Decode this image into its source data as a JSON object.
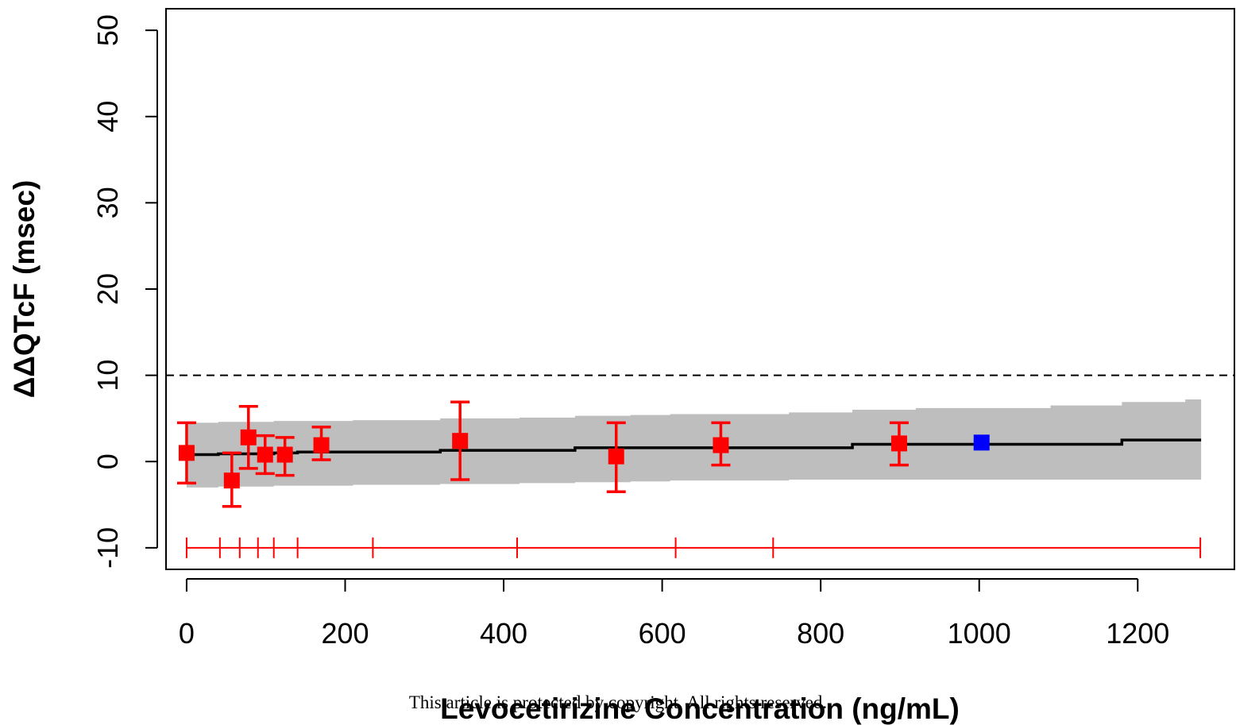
{
  "chart_data": {
    "type": "scatter",
    "title": "",
    "xlabel": "Levocetirizine Concentration (ng/mL)",
    "ylabel": "ΔΔQTcF (msec)",
    "xlim": [
      -26,
      1322
    ],
    "ylim": [
      -12.5,
      52.5
    ],
    "x_ticks": [
      0,
      200,
      400,
      600,
      800,
      1000,
      1200
    ],
    "y_ticks": [
      -10,
      0,
      10,
      20,
      30,
      40,
      50
    ],
    "grid": false,
    "threshold_line": {
      "y": 10,
      "style": "dashed",
      "color": "#000000"
    },
    "fit_line": {
      "x": [
        0,
        40,
        40,
        110,
        110,
        140,
        140,
        320,
        320,
        490,
        490,
        840,
        840,
        1180,
        1180,
        1280
      ],
      "y": [
        0.8,
        0.8,
        0.9,
        0.9,
        1.0,
        1.0,
        1.1,
        1.1,
        1.3,
        1.3,
        1.6,
        1.6,
        2.0,
        2.0,
        2.5,
        2.5
      ]
    },
    "confidence_band": {
      "x": [
        0,
        40,
        40,
        110,
        110,
        210,
        210,
        320,
        320,
        420,
        420,
        490,
        490,
        560,
        560,
        610,
        610,
        760,
        760,
        840,
        840,
        920,
        920,
        1090,
        1090,
        1180,
        1180,
        1260,
        1260,
        1280
      ],
      "lower": [
        -3.0,
        -3.0,
        -2.9,
        -2.9,
        -2.8,
        -2.8,
        -2.7,
        -2.7,
        -2.6,
        -2.6,
        -2.5,
        -2.5,
        -2.4,
        -2.4,
        -2.3,
        -2.3,
        -2.2,
        -2.2,
        -2.1,
        -2.1,
        -2.1,
        -2.1,
        -2.1,
        -2.1,
        -2.1,
        -2.1,
        -2.1,
        -2.1,
        -2.1,
        -2.1
      ],
      "upper": [
        4.5,
        4.5,
        4.6,
        4.6,
        4.7,
        4.7,
        4.8,
        4.8,
        5.0,
        5.0,
        5.1,
        5.1,
        5.3,
        5.3,
        5.4,
        5.4,
        5.5,
        5.5,
        5.7,
        5.7,
        6.0,
        6.0,
        6.2,
        6.2,
        6.5,
        6.5,
        6.9,
        6.9,
        7.2,
        7.2
      ]
    },
    "series": [
      {
        "color": "#ff0000",
        "points": [
          {
            "x": 0,
            "y": 1.0,
            "lo": -2.5,
            "hi": 4.5
          },
          {
            "x": 57,
            "y": -2.2,
            "lo": -5.2,
            "hi": 1.0
          },
          {
            "x": 78,
            "y": 2.8,
            "lo": -0.8,
            "hi": 6.4
          },
          {
            "x": 99,
            "y": 0.8,
            "lo": -1.4,
            "hi": 3.0
          },
          {
            "x": 124,
            "y": 0.8,
            "lo": -1.6,
            "hi": 2.8
          },
          {
            "x": 170,
            "y": 1.9,
            "lo": 0.2,
            "hi": 4.0
          },
          {
            "x": 345,
            "y": 2.4,
            "lo": -2.1,
            "hi": 6.9
          },
          {
            "x": 542,
            "y": 0.6,
            "lo": -3.5,
            "hi": 4.5
          },
          {
            "x": 674,
            "y": 1.9,
            "lo": -0.4,
            "hi": 4.5
          },
          {
            "x": 899,
            "y": 2.1,
            "lo": -0.4,
            "hi": 4.5
          }
        ]
      },
      {
        "color": "#0000ff",
        "points": [
          {
            "x": 1003,
            "y": 2.2
          }
        ]
      }
    ],
    "rug": {
      "y": -10,
      "color": "#ff0000",
      "breaks": [
        0,
        42,
        67,
        90,
        110,
        140,
        235,
        417,
        617,
        740,
        1279
      ]
    }
  },
  "footer": {
    "watermark": "This article is protected by copyright. All rights reserved."
  }
}
